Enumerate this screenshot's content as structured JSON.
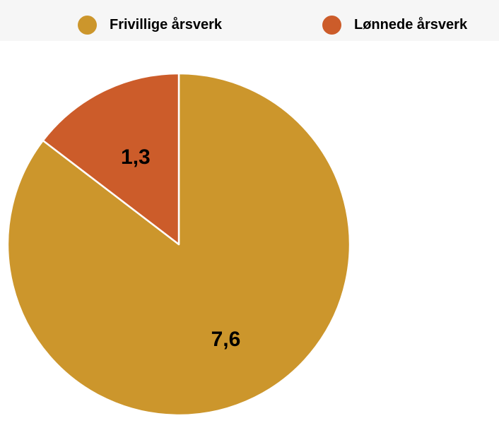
{
  "chart_data": {
    "type": "pie",
    "categories": [
      "Frivillige årsverk",
      "Lønnede årsverk"
    ],
    "values": [
      7.6,
      1.3
    ],
    "data_labels": [
      "7,6",
      "1,3"
    ],
    "colors": [
      "#cc962c",
      "#cc5c2a"
    ],
    "title": "",
    "legend": "top"
  }
}
